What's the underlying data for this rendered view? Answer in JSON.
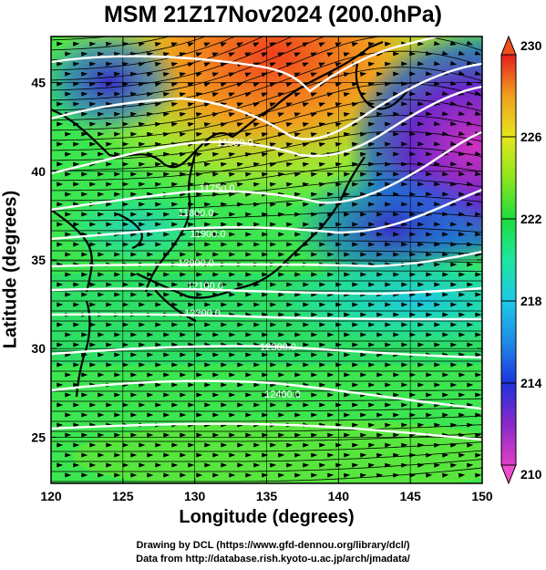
{
  "title": "MSM 21Z17Nov2024 (200.0hPa)",
  "x_axis": {
    "label": "Longitude (degrees)",
    "range": [
      120,
      150
    ],
    "ticks": [
      "120",
      "125",
      "130",
      "135",
      "140",
      "145",
      "150"
    ]
  },
  "y_axis": {
    "label": "Latitude  (degrees)",
    "range": [
      22.4,
      47.6
    ],
    "ticks": [
      "25",
      "30",
      "35",
      "40",
      "45"
    ]
  },
  "colorbar": {
    "range": [
      210,
      230
    ],
    "ticks": [
      "210",
      "214",
      "218",
      "222",
      "226",
      "230"
    ],
    "colors": [
      "#e040c8",
      "#8a28c8",
      "#1e32dc",
      "#1e8ce6",
      "#1ec8e6",
      "#1ee6a0",
      "#1edc3c",
      "#8ce61e",
      "#e6e61e",
      "#f0a01e",
      "#f0501e",
      "#e61e1e"
    ]
  },
  "contour_labels": [
    {
      "text": "11500.0"
    },
    {
      "text": "11750.0"
    },
    {
      "text": "11800.0"
    },
    {
      "text": "11900.0"
    },
    {
      "text": "12000.0"
    },
    {
      "text": "12100.0"
    },
    {
      "text": "12200.0"
    },
    {
      "text": "12300.0"
    },
    {
      "text": "12400.0"
    }
  ],
  "credits": {
    "line1": "Drawing by DCL (https://www.gfd-dennou.org/library/dcl/)",
    "line2": "Data from http://database.rish.kyoto-u.ac.jp/arch/jmadata/"
  }
}
